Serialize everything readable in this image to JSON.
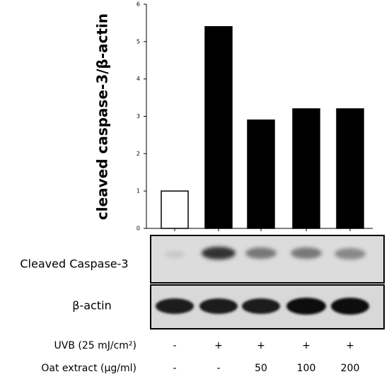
{
  "chart_data": {
    "type": "bar",
    "ylabel": "cleaved caspase-3/β-actin",
    "categories": [
      null,
      null,
      null,
      null,
      null
    ],
    "values": [
      1,
      5.4,
      2.9,
      3.2,
      3.2
    ],
    "colors": [
      "#ffffff",
      "#000000",
      "#000000",
      "#000000",
      "#000000"
    ],
    "edgecolor": "#000000",
    "ylim": [
      0,
      6
    ],
    "yticks": [
      0,
      1,
      2,
      3,
      4,
      5,
      6
    ],
    "grid": false
  },
  "blot_labels": [
    "Cleaved Caspase-3",
    "β-actin"
  ],
  "treatments": [
    {
      "label": "UVB (25 mJ/cm²)",
      "values": [
        "-",
        "+",
        "+",
        "+",
        "+"
      ]
    },
    {
      "label": "Oat extract (μg/ml)",
      "values": [
        "-",
        "-",
        "50",
        "100",
        "200"
      ]
    }
  ]
}
